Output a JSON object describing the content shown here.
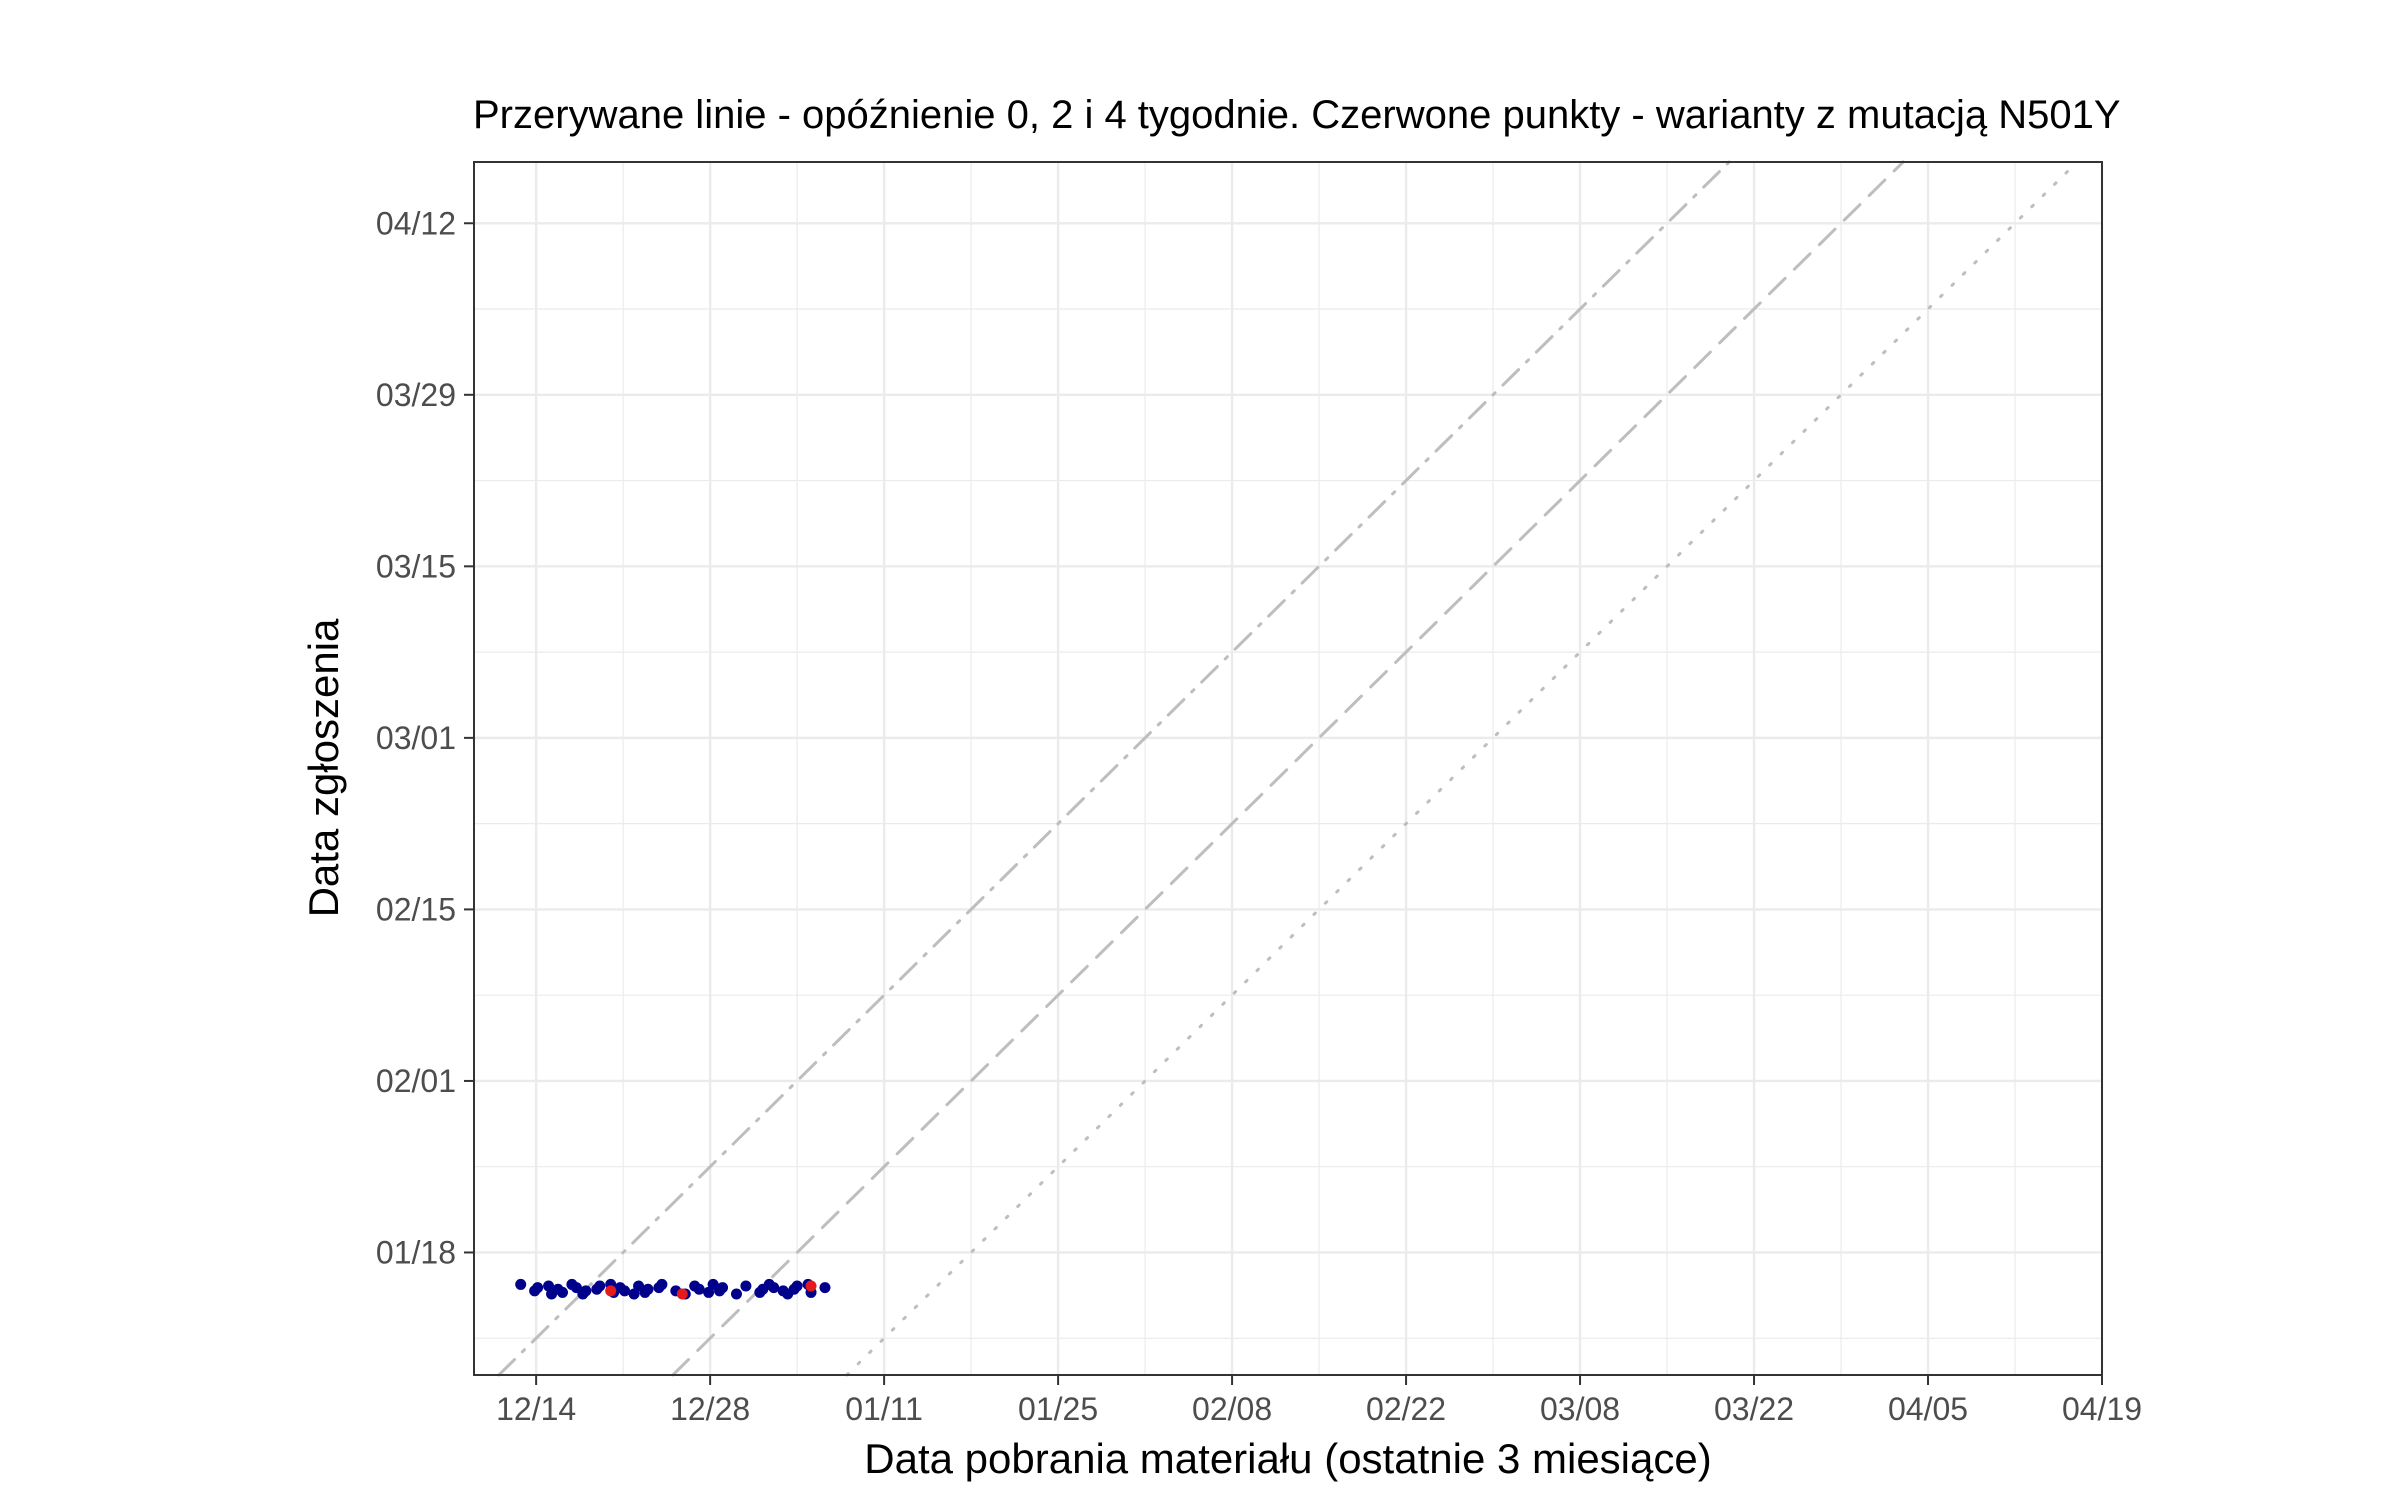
{
  "chart_data": {
    "type": "scatter",
    "title": "Przerywane linie - opóźnienie 0, 2 i 4 tygodnie. Czerwone punkty - warianty z mutacją N501Y",
    "xlabel": "Data pobrania materiału (ostatnie 3 miesiące)",
    "ylabel": "Data zgłoszenia",
    "x_axis": {
      "type": "date",
      "range": [
        "2020-12-09",
        "2021-04-19"
      ],
      "ticks": [
        "2020-12-14",
        "2020-12-28",
        "2021-01-11",
        "2021-01-25",
        "2021-02-08",
        "2021-02-22",
        "2021-03-08",
        "2021-03-22",
        "2021-04-05",
        "2021-04-19"
      ],
      "tick_labels": [
        "12/14",
        "12/28",
        "01/11",
        "01/25",
        "02/08",
        "02/22",
        "03/08",
        "03/22",
        "04/05",
        "04/19"
      ]
    },
    "y_axis": {
      "type": "date",
      "range": [
        "2021-01-08",
        "2021-04-17"
      ],
      "ticks": [
        "2021-01-18",
        "2021-02-01",
        "2021-02-15",
        "2021-03-01",
        "2021-03-15",
        "2021-03-29",
        "2021-04-12"
      ],
      "tick_labels": [
        "01/18",
        "02/01",
        "02/15",
        "03/01",
        "03/15",
        "03/29",
        "04/12"
      ]
    },
    "grid": true,
    "reference_lines": [
      {
        "delay_weeks": 0,
        "style": "dotted"
      },
      {
        "delay_weeks": 2,
        "style": "dashed"
      },
      {
        "delay_weeks": 4,
        "style": "dashdot"
      }
    ],
    "reported_date": "2021-01-15",
    "series": [
      {
        "color": "#00008b",
        "x": [
          "2020-12-13",
          "2020-12-14",
          "2020-12-14",
          "2020-12-15",
          "2020-12-15",
          "2020-12-16",
          "2020-12-16",
          "2020-12-17",
          "2020-12-17",
          "2020-12-18",
          "2020-12-18",
          "2020-12-19",
          "2020-12-19",
          "2020-12-20",
          "2020-12-20",
          "2020-12-21",
          "2020-12-21",
          "2020-12-22",
          "2020-12-22",
          "2020-12-23",
          "2020-12-23",
          "2020-12-24",
          "2020-12-24",
          "2020-12-25",
          "2020-12-26",
          "2020-12-27",
          "2020-12-27",
          "2020-12-28",
          "2020-12-28",
          "2020-12-29",
          "2020-12-29",
          "2020-12-30",
          "2020-12-31",
          "2021-01-01",
          "2021-01-01",
          "2021-01-02",
          "2021-01-02",
          "2021-01-03",
          "2021-01-03",
          "2021-01-04",
          "2021-01-04",
          "2021-01-05",
          "2021-01-05",
          "2021-01-06"
        ]
      },
      {
        "color": "#e41a1c",
        "x": [
          "2020-12-20",
          "2020-12-26",
          "2021-01-05"
        ]
      }
    ]
  }
}
